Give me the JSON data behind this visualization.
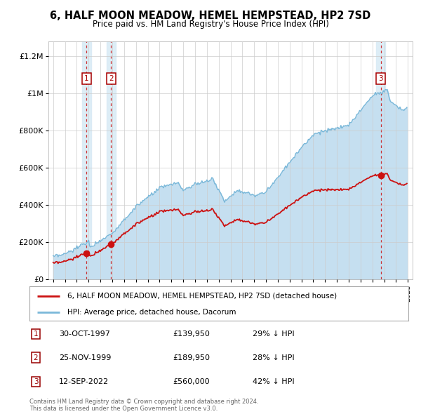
{
  "title": "6, HALF MOON MEADOW, HEMEL HEMPSTEAD, HP2 7SD",
  "subtitle": "Price paid vs. HM Land Registry's House Price Index (HPI)",
  "sale_dates_num": [
    1997.83,
    1999.9,
    2022.7
  ],
  "sale_dates": [
    "30-OCT-1997",
    "25-NOV-1999",
    "12-SEP-2022"
  ],
  "sale_prices": [
    139950,
    189950,
    560000
  ],
  "sale_hpi_diff": [
    "29% ↓ HPI",
    "28% ↓ HPI",
    "42% ↓ HPI"
  ],
  "hpi_line_color": "#7ab8d9",
  "hpi_fill_color": "#c5dff0",
  "price_line_color": "#cc1111",
  "sale_dot_color": "#cc1111",
  "background_color": "#ffffff",
  "grid_color": "#cccccc",
  "shade_color": "#d8eaf5",
  "ylim": [
    0,
    1280000
  ],
  "xlim_start": 1994.6,
  "xlim_end": 2025.4,
  "yticks": [
    0,
    200000,
    400000,
    600000,
    800000,
    1000000,
    1200000
  ],
  "ylabels": [
    "£0",
    "£200K",
    "£400K",
    "£600K",
    "£800K",
    "£1M",
    "£1.2M"
  ],
  "footnote": "Contains HM Land Registry data © Crown copyright and database right 2024.\nThis data is licensed under the Open Government Licence v3.0.",
  "legend_entries": [
    "6, HALF MOON MEADOW, HEMEL HEMPSTEAD, HP2 7SD (detached house)",
    "HPI: Average price, detached house, Dacorum"
  ]
}
